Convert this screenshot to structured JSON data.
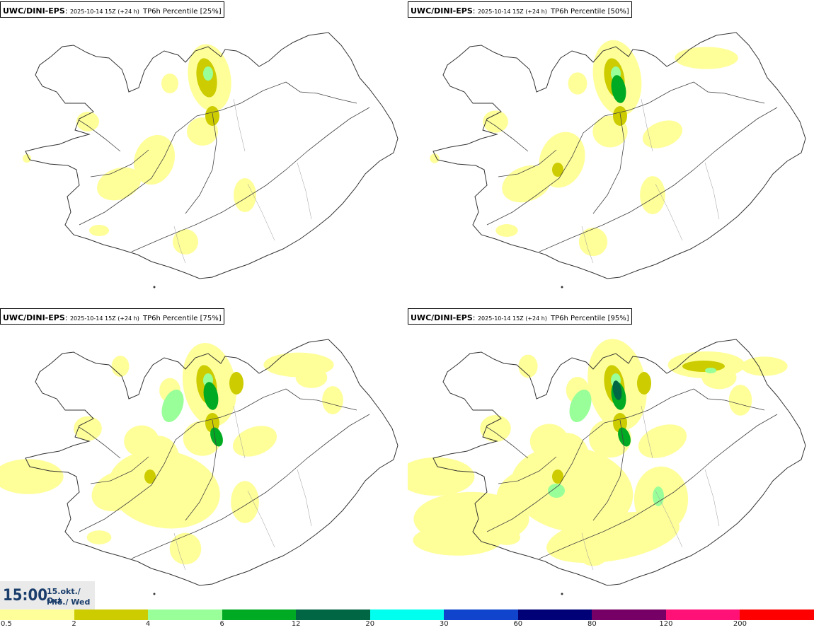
{
  "panels": [
    {
      "model": "UWC/DINI-EPS",
      "time": "2025-10-14 15Z (+24 h)",
      "variable": "TP6h Percentile [25%]",
      "percentile": 25
    },
    {
      "model": "UWC/DINI-EPS",
      "time": "2025-10-14 15Z (+24 h)",
      "variable": "TP6h Percentile [50%]",
      "percentile": 50
    },
    {
      "model": "UWC/DINI-EPS",
      "time": "2025-10-14 15Z (+24 h)",
      "variable": "TP6h Percentile [75%]",
      "percentile": 75
    },
    {
      "model": "UWC/DINI-EPS",
      "time": "2025-10-14 15Z (+24 h)",
      "variable": "TP6h Percentile [95%]",
      "percentile": 95
    }
  ],
  "valid_time": {
    "time": "15:00",
    "date": "15.okt./ Oct",
    "weekday": "Mið./ Wed"
  },
  "legend": {
    "labels": [
      "0.5",
      "2",
      "4",
      "6",
      "12",
      "20",
      "30",
      "60",
      "80",
      "120",
      "200"
    ],
    "colors": [
      "#ffff99",
      "#cccc00",
      "#99ff99",
      "#00aa22",
      "#006644",
      "#00ffee",
      "#1144cc",
      "#000077",
      "#770066",
      "#ff1177",
      "#ff0000"
    ]
  }
}
